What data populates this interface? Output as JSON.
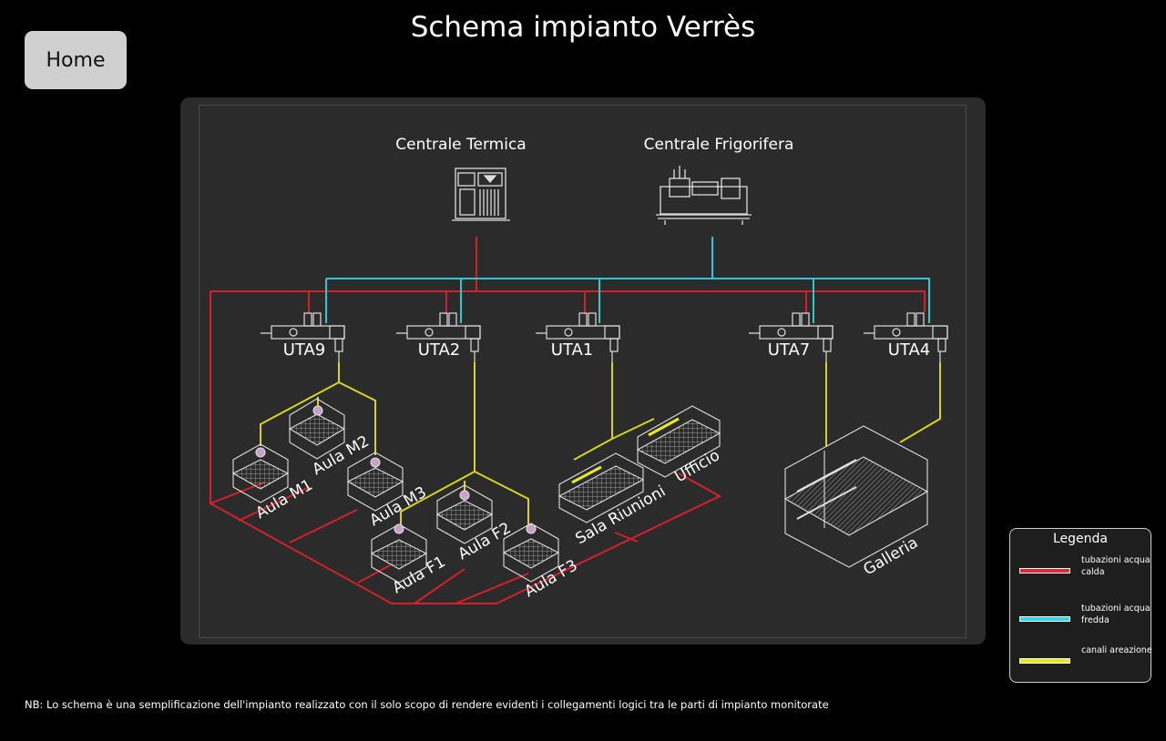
{
  "page": {
    "title": "Schema impianto Verrès"
  },
  "nav": {
    "home_label": "Home"
  },
  "plants": {
    "thermal": "Centrale Termica",
    "cooling": "Centrale Frigorifera"
  },
  "units": [
    "UTA9",
    "UTA2",
    "UTA1",
    "UTA7",
    "UTA4"
  ],
  "rooms": {
    "aula_m1": "Aula M1",
    "aula_m2": "Aula M2",
    "aula_m3": "Aula M3",
    "aula_f1": "Aula F1",
    "aula_f2": "Aula F2",
    "aula_f3": "Aula F3",
    "sala_riunioni": "Sala Riunioni",
    "ufficio": "Ufficio",
    "galleria": "Galleria"
  },
  "legend": {
    "title": "Legenda",
    "items": [
      {
        "label": "tubazioni acqua calda",
        "color": "#e8262b"
      },
      {
        "label": "tubazioni acqua fredda",
        "color": "#36d8e0"
      },
      {
        "label": "canali areazione",
        "color": "#e8e82a"
      }
    ]
  },
  "colors": {
    "hot": "#d4202a",
    "cold": "#2fc7d3",
    "air": "#d6d21f"
  },
  "note": "NB: Lo schema è una semplificazione dell'impianto realizzato con il solo scopo di rendere evidenti i collegamenti logici tra le parti di impianto monitorate"
}
